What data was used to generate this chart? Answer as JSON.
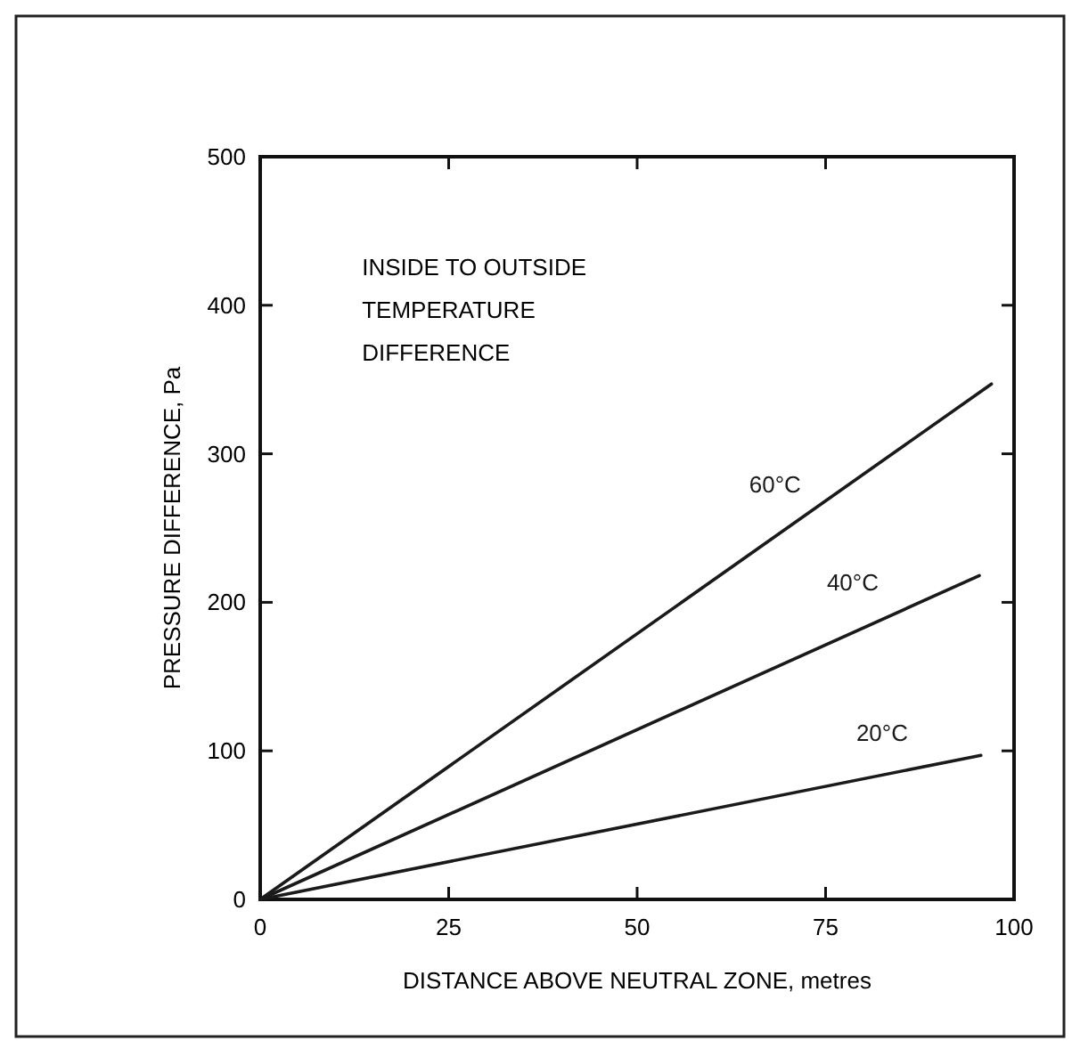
{
  "chart_data": {
    "type": "line",
    "xlabel": "DISTANCE ABOVE NEUTRAL ZONE, metres",
    "ylabel": "PRESSURE DIFFERENCE, Pa",
    "series": [
      {
        "name": "60°C",
        "color": "#1a1a1a",
        "x": [
          0,
          97
        ],
        "values": [
          0,
          347
        ]
      },
      {
        "name": "40°C",
        "color": "#1a1a1a",
        "x": [
          0,
          95.4
        ],
        "values": [
          0,
          218
        ]
      },
      {
        "name": "20°C",
        "color": "#1a1a1a",
        "x": [
          0,
          95.6
        ],
        "values": [
          0,
          97
        ]
      }
    ],
    "annotations": [
      "INSIDE TO OUTSIDE\nTEMPERATURE\nDIFFERENCE"
    ],
    "xlim": [
      0,
      100
    ],
    "xticks": [
      0,
      25,
      50,
      75,
      100
    ],
    "ylim": [
      0,
      500
    ],
    "yticks": [
      0,
      100,
      200,
      300,
      400,
      500
    ],
    "grid": false,
    "marker": "none",
    "line_style": "solid"
  }
}
